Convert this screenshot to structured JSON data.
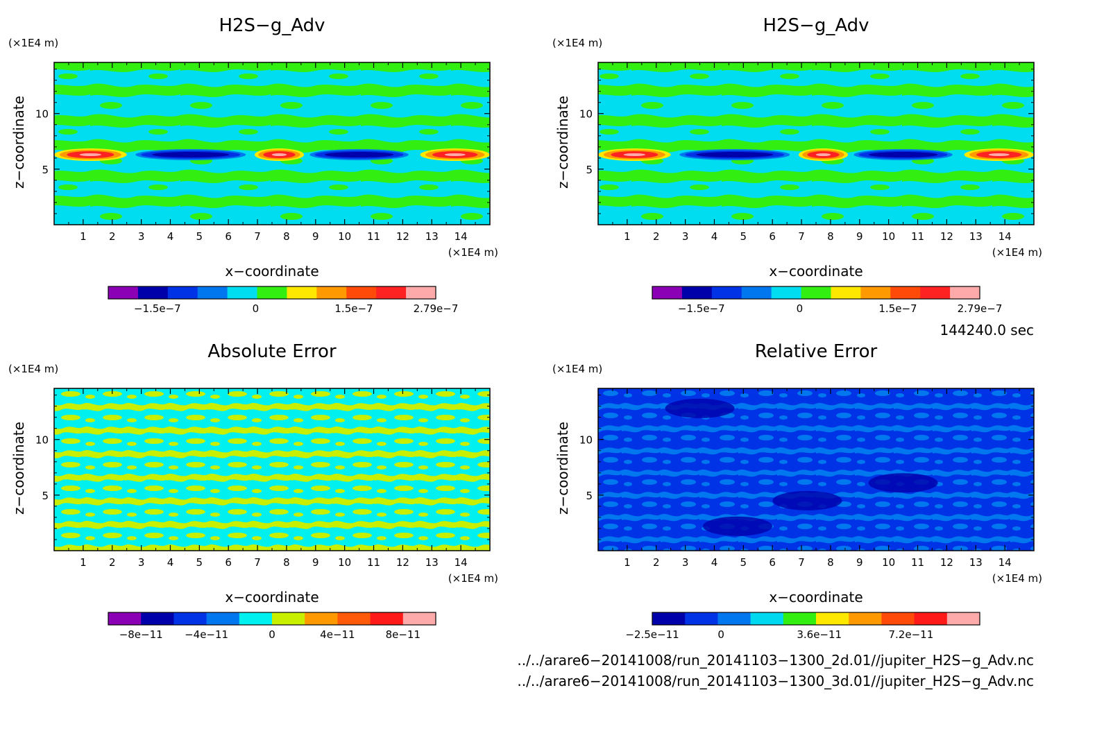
{
  "chart_data": [
    {
      "type": "heatmap",
      "title": "H2S−g_Adv",
      "xlabel": "x−coordinate",
      "ylabel": "z−coordinate",
      "x_unit": "(×1E4 m)",
      "y_unit": "(×1E4 m)",
      "xlim": [
        0,
        15
      ],
      "ylim": [
        0,
        14.6
      ],
      "x_ticks": [
        "1",
        "2",
        "3",
        "4",
        "5",
        "6",
        "7",
        "8",
        "9",
        "10",
        "11",
        "12",
        "13",
        "14"
      ],
      "y_ticks": [
        "5",
        "10"
      ],
      "colorbar": {
        "colors": [
          "#8b00b4",
          "#0000aa",
          "#0033e6",
          "#0077ee",
          "#00ddf0",
          "#33ee11",
          "#ffe800",
          "#ff9900",
          "#ff4a0a",
          "#ff2222",
          "#ffaaaa"
        ],
        "labels": [
          "−1.5e−7",
          "0",
          "1.5e−7",
          "2.79e−7"
        ]
      }
    },
    {
      "type": "heatmap",
      "title": "H2S−g_Adv",
      "xlabel": "x−coordinate",
      "ylabel": "z−coordinate",
      "x_unit": "(×1E4 m)",
      "y_unit": "(×1E4 m)",
      "xlim": [
        0,
        15
      ],
      "ylim": [
        0,
        14.6
      ],
      "x_ticks": [
        "1",
        "2",
        "3",
        "4",
        "5",
        "6",
        "7",
        "8",
        "9",
        "10",
        "11",
        "12",
        "13",
        "14"
      ],
      "y_ticks": [
        "5",
        "10"
      ],
      "colorbar": {
        "colors": [
          "#8b00b4",
          "#0000aa",
          "#0033e6",
          "#0077ee",
          "#00ddf0",
          "#33ee11",
          "#ffe800",
          "#ff9900",
          "#ff4a0a",
          "#ff2222",
          "#ffaaaa"
        ],
        "labels": [
          "−1.5e−7",
          "0",
          "1.5e−7",
          "2.79e−7"
        ]
      }
    },
    {
      "type": "heatmap",
      "title": "Absolute Error",
      "xlabel": "x−coordinate",
      "ylabel": "z−coordinate",
      "x_unit": "(×1E4 m)",
      "y_unit": "(×1E4 m)",
      "xlim": [
        0,
        15
      ],
      "ylim": [
        0,
        14.6
      ],
      "x_ticks": [
        "1",
        "2",
        "3",
        "4",
        "5",
        "6",
        "7",
        "8",
        "9",
        "10",
        "11",
        "12",
        "13",
        "14"
      ],
      "y_ticks": [
        "5",
        "10"
      ],
      "colorbar": {
        "colors": [
          "#8b00b4",
          "#0000aa",
          "#0033e6",
          "#0077ee",
          "#00f0f0",
          "#c8ee00",
          "#ff9900",
          "#ff5a0a",
          "#ff1a1a",
          "#ffaaaa"
        ],
        "labels": [
          "−8e−11",
          "−4e−11",
          "0",
          "4e−11",
          "8e−11"
        ]
      }
    },
    {
      "type": "heatmap",
      "title": "Relative Error",
      "xlabel": "x−coordinate",
      "ylabel": "z−coordinate",
      "x_unit": "(×1E4 m)",
      "y_unit": "(×1E4 m)",
      "xlim": [
        0,
        15
      ],
      "ylim": [
        0,
        14.6
      ],
      "x_ticks": [
        "1",
        "2",
        "3",
        "4",
        "5",
        "6",
        "7",
        "8",
        "9",
        "10",
        "11",
        "12",
        "13",
        "14"
      ],
      "y_ticks": [
        "5",
        "10"
      ],
      "colorbar": {
        "colors": [
          "#0000aa",
          "#0033e6",
          "#0077ee",
          "#00d8f0",
          "#33ee11",
          "#ffe800",
          "#ff9900",
          "#ff4a0a",
          "#ff1a1a",
          "#ffaaaa"
        ],
        "labels": [
          "−2.5e−11",
          "0",
          "3.6e−11",
          "7.2e−11"
        ]
      }
    }
  ],
  "time_label": "144240.0 sec",
  "files": [
    "../../arare6−20141008/run_20141103−1300_2d.01//jupiter_H2S−g_Adv.nc",
    "../../arare6−20141008/run_20141103−1300_3d.01//jupiter_H2S−g_Adv.nc"
  ]
}
